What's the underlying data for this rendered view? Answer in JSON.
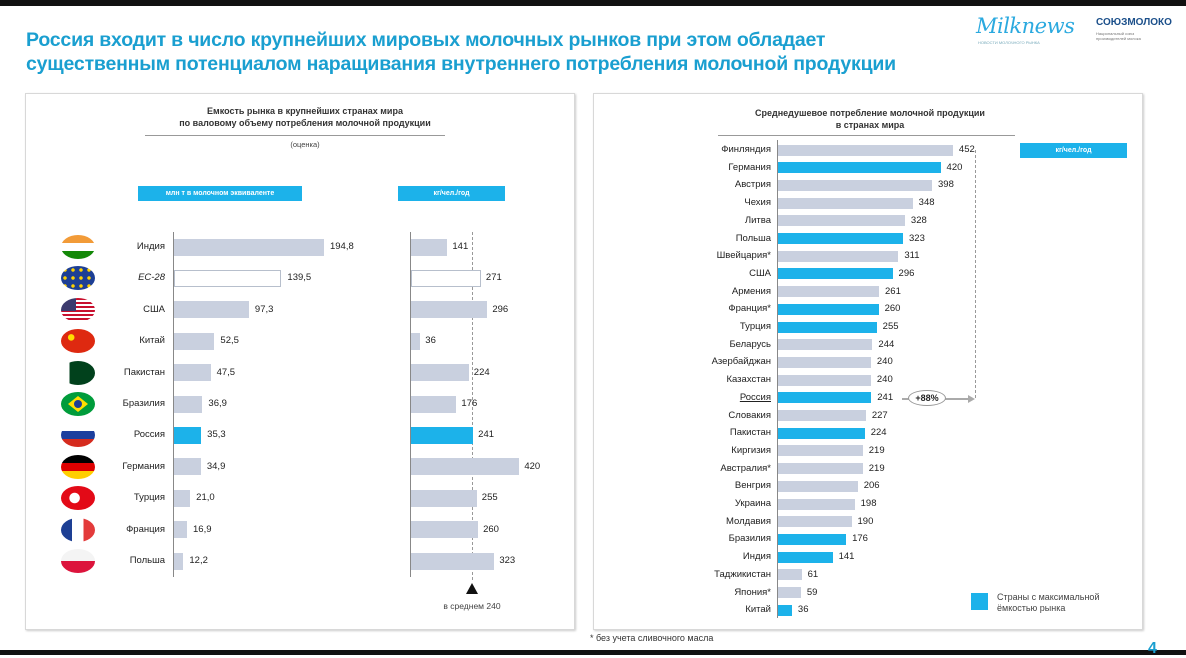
{
  "header": {
    "title_line1": "Россия входит в число крупнейших мировых молочных рынков при этом обладает",
    "title_line2": "существенным потенциалом наращивания внутреннего потребления молочной продукции",
    "logo1": "Milknews",
    "logo1_sub": "НОВОСТИ МОЛОЧНОГО РЫНКА",
    "logo2": "СОЮЗМОЛОКО",
    "logo2_sub": "Национальный союз производителей молока"
  },
  "colors": {
    "accent": "#1cb2ea",
    "bar": "#c9d0df",
    "title": "#1a9fd0"
  },
  "chart_data": [
    {
      "type": "bar",
      "title": "Емкость рынка в крупнейших странах мира по валовому объему потребления молочной продукции",
      "title_line1": "Емкость рынка в крупнейших странах мира",
      "title_line2": "по валовому объему потребления молочной продукции",
      "subtitle": "(оценка)",
      "unit_left": "млн т в молочном эквиваленте",
      "unit_right": "кг/чел./год",
      "categories": [
        "Индия",
        "ЕС-28",
        "США",
        "Китай",
        "Пакистан",
        "Бразилия",
        "Россия",
        "Германия",
        "Турция",
        "Франция",
        "Польша"
      ],
      "flags": [
        "india",
        "eu",
        "usa",
        "china",
        "pakistan",
        "brazil",
        "russia",
        "germany",
        "turkey",
        "france",
        "poland"
      ],
      "series": [
        {
          "name": "млн т в молочном эквиваленте",
          "values": [
            194.8,
            139.5,
            97.3,
            52.5,
            47.5,
            36.9,
            35.3,
            34.9,
            21.0,
            16.9,
            12.2
          ],
          "labels": [
            "194,8",
            "139,5",
            "97,3",
            "52,5",
            "47,5",
            "36,9",
            "35,3",
            "34,9",
            "21,0",
            "16,9",
            "12,2"
          ]
        },
        {
          "name": "кг/чел./год",
          "values": [
            141,
            271,
            296,
            36,
            224,
            176,
            241,
            420,
            255,
            260,
            323
          ],
          "labels": [
            "141",
            "271",
            "296",
            "36",
            "224",
            "176",
            "241",
            "420",
            "255",
            "260",
            "323"
          ]
        }
      ],
      "highlight": [
        "Россия"
      ],
      "outlined": [
        "ЕС-28"
      ],
      "average": 240,
      "average_label": "в среднем 240"
    },
    {
      "type": "bar",
      "title_line1": "Среднедушевое потребление молочной продукции",
      "title_line2": "в странах мира",
      "unit": "кг/чел./год",
      "categories": [
        "Финляндия",
        "Германия",
        "Австрия",
        "Чехия",
        "Литва",
        "Польша",
        "Швейцария*",
        "США",
        "Армения",
        "Франция*",
        "Турция",
        "Беларусь",
        "Азербайджан",
        "Казахстан",
        "Россия",
        "Словакия",
        "Пакистан",
        "Киргизия",
        "Австралия*",
        "Венгрия",
        "Украина",
        "Молдавия",
        "Бразилия",
        "Индия",
        "Таджикистан",
        "Япония*",
        "Китай"
      ],
      "values": [
        452,
        420,
        398,
        348,
        328,
        323,
        311,
        296,
        261,
        260,
        255,
        244,
        240,
        240,
        241,
        227,
        224,
        219,
        219,
        206,
        198,
        190,
        176,
        141,
        61,
        59,
        36
      ],
      "highlight": [
        "Германия",
        "Польша",
        "США",
        "Франция*",
        "Турция",
        "Россия",
        "Пакистан",
        "Бразилия",
        "Индия",
        "Китай"
      ],
      "annotation": "+88%",
      "legend": "Страны с максимальной ёмкостью рынка",
      "legend_placement": "bottom-right"
    }
  ],
  "footnote": "* без учета сливочного масла",
  "page_number": "4"
}
